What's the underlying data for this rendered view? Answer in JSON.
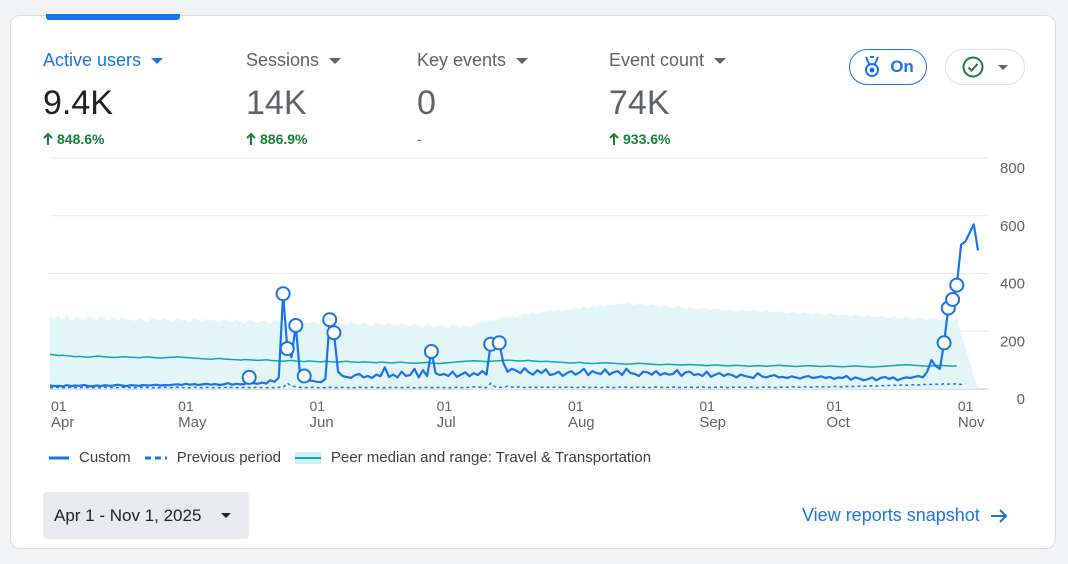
{
  "metrics": [
    {
      "label": "Active users",
      "value": "9.4K",
      "change": "848.6%",
      "trend": "up",
      "active": true
    },
    {
      "label": "Sessions",
      "value": "14K",
      "change": "886.9%",
      "trend": "up",
      "active": false
    },
    {
      "label": "Key events",
      "value": "0",
      "change": "-",
      "trend": "none",
      "active": false
    },
    {
      "label": "Event count",
      "value": "74K",
      "change": "933.6%",
      "trend": "up",
      "active": false
    }
  ],
  "toggle": {
    "label": "On",
    "icon": "award-ribbon-icon"
  },
  "status": {
    "icon": "check-circle-icon"
  },
  "legend": {
    "custom": "Custom",
    "previous": "Previous period",
    "peer": "Peer median and range: Travel & Transportation"
  },
  "date_range": "Apr 1 - Nov 1, 2025",
  "snapshot_link": "View reports snapshot",
  "colors": {
    "primary": "#1a73e8",
    "positive": "#188038",
    "peer_line": "#12a4af",
    "peer_band": "#e4f5f8"
  },
  "chart_data": {
    "type": "line",
    "ylim": [
      0,
      800
    ],
    "y_ticks": [
      "0",
      "200",
      "400",
      "600",
      "800"
    ],
    "x_ticks": [
      {
        "day": "01",
        "month": "Apr",
        "index": 0
      },
      {
        "day": "01",
        "month": "May",
        "index": 30
      },
      {
        "day": "01",
        "month": "Jun",
        "index": 61
      },
      {
        "day": "01",
        "month": "Jul",
        "index": 91
      },
      {
        "day": "01",
        "month": "Aug",
        "index": 122
      },
      {
        "day": "01",
        "month": "Sep",
        "index": 153
      },
      {
        "day": "01",
        "month": "Oct",
        "index": 183
      },
      {
        "day": "01",
        "month": "Nov",
        "index": 214
      }
    ],
    "series": [
      {
        "name": "Custom",
        "values": [
          12,
          10,
          11,
          9,
          13,
          10,
          12,
          11,
          14,
          10,
          9,
          12,
          10,
          13,
          11,
          12,
          15,
          12,
          10,
          13,
          12,
          11,
          14,
          12,
          13,
          15,
          12,
          14,
          13,
          15,
          16,
          14,
          18,
          15,
          17,
          14,
          16,
          18,
          15,
          17,
          14,
          16,
          20,
          15,
          18,
          16,
          17,
          40,
          20,
          18,
          22,
          19,
          30,
          25,
          40,
          330,
          140,
          110,
          220,
          50,
          45,
          30,
          28,
          25,
          24,
          35,
          240,
          195,
          60,
          45,
          42,
          38,
          48,
          52,
          40,
          45,
          38,
          50,
          44,
          75,
          42,
          50,
          40,
          60,
          45,
          48,
          70,
          40,
          65,
          45,
          130,
          55,
          48,
          52,
          45,
          60,
          42,
          50,
          58,
          44,
          55,
          48,
          62,
          50,
          155,
          150,
          160,
          90,
          60,
          70,
          64,
          55,
          72,
          58,
          50,
          65,
          55,
          68,
          48,
          52,
          60,
          45,
          55,
          62,
          50,
          58,
          70,
          48,
          62,
          55,
          52,
          68,
          50,
          58,
          62,
          48,
          70,
          55,
          52,
          45,
          60,
          58,
          50,
          62,
          48,
          55,
          50,
          52,
          65,
          45,
          58,
          60,
          48,
          52,
          45,
          60,
          42,
          50,
          55,
          45,
          52,
          48,
          40,
          50,
          45,
          42,
          38,
          55,
          44,
          40,
          45,
          48,
          40,
          42,
          38,
          44,
          40,
          36,
          42,
          45,
          38,
          40,
          44,
          38,
          42,
          35,
          40,
          38,
          45,
          32,
          40,
          36,
          30,
          34,
          40,
          30,
          38,
          42,
          35,
          40,
          30,
          36,
          40,
          38,
          42,
          45,
          40,
          60,
          100,
          80,
          70,
          160,
          280,
          310,
          360,
          500,
          510,
          540,
          570,
          480
        ]
      },
      {
        "name": "Previous period",
        "values": [
          5,
          5,
          6,
          5,
          4,
          6,
          5,
          5,
          6,
          5,
          4,
          5,
          5,
          6,
          5,
          4,
          5,
          6,
          5,
          5,
          4,
          5,
          6,
          5,
          5,
          4,
          5,
          6,
          5,
          5,
          6,
          5,
          5,
          4,
          6,
          5,
          5,
          6,
          5,
          4,
          5,
          5,
          6,
          5,
          5,
          4,
          6,
          5,
          5,
          6,
          5,
          4,
          5,
          5,
          6,
          5,
          20,
          10,
          8,
          6,
          5,
          5,
          6,
          5,
          4,
          5,
          6,
          5,
          5,
          6,
          5,
          5,
          4,
          6,
          5,
          5,
          6,
          5,
          5,
          4,
          5,
          6,
          5,
          5,
          6,
          5,
          4,
          5,
          5,
          6,
          5,
          5,
          6,
          5,
          5,
          4,
          6,
          5,
          5,
          6,
          8,
          7,
          6,
          5,
          20,
          8,
          6,
          5,
          10,
          7,
          6,
          8,
          5,
          6,
          7,
          5,
          6,
          7,
          5,
          6,
          6,
          5,
          7,
          6,
          5,
          6,
          7,
          5,
          6,
          6,
          5,
          7,
          6,
          5,
          6,
          7,
          6,
          5,
          6,
          7,
          6,
          6,
          5,
          7,
          6,
          5,
          6,
          7,
          6,
          5,
          6,
          7,
          5,
          6,
          7,
          6,
          5,
          6,
          7,
          6,
          5,
          6,
          7,
          6,
          5,
          7,
          6,
          5,
          6,
          7,
          6,
          5,
          6,
          7,
          6,
          8,
          7,
          6,
          8,
          7,
          6,
          8,
          7,
          8,
          7,
          9,
          8,
          7,
          9,
          8,
          9,
          10,
          9,
          10,
          11,
          10,
          12,
          11,
          12,
          13,
          12,
          14,
          13,
          14,
          15,
          14,
          16,
          15,
          16,
          17,
          16,
          18,
          17,
          18,
          17,
          16,
          18
        ]
      },
      {
        "name": "Peer median",
        "values": [
          120,
          118,
          116,
          117,
          115,
          114,
          112,
          113,
          111,
          110,
          112,
          114,
          113,
          111,
          110,
          109,
          110,
          112,
          111,
          110,
          109,
          108,
          110,
          111,
          110,
          108,
          107,
          108,
          109,
          110,
          111,
          110,
          109,
          108,
          107,
          106,
          105,
          104,
          103,
          105,
          106,
          104,
          103,
          102,
          101,
          100,
          102,
          101,
          100,
          99,
          100,
          101,
          99,
          98,
          97,
          96,
          98,
          99,
          97,
          96,
          95,
          97,
          96,
          95,
          94,
          96,
          95,
          94,
          93,
          95,
          96,
          94,
          93,
          92,
          94,
          93,
          92,
          91,
          93,
          92,
          91,
          90,
          92,
          93,
          91,
          90,
          89,
          90,
          91,
          92,
          90,
          89,
          88,
          90,
          91,
          92,
          94,
          95,
          96,
          97,
          98,
          97,
          96,
          95,
          96,
          97,
          98,
          99,
          100,
          99,
          98,
          97,
          98,
          99,
          97,
          96,
          95,
          96,
          95,
          94,
          93,
          92,
          91,
          90,
          91,
          92,
          90,
          89,
          88,
          89,
          90,
          91,
          90,
          89,
          88,
          87,
          86,
          87,
          88,
          89,
          88,
          87,
          86,
          85,
          84,
          85,
          86,
          85,
          84,
          83,
          84,
          85,
          84,
          83,
          82,
          81,
          82,
          83,
          82,
          81,
          80,
          81,
          82,
          81,
          80,
          79,
          80,
          81,
          80,
          79,
          80,
          81,
          82,
          81,
          80,
          79,
          78,
          79,
          80,
          81,
          80,
          79,
          78,
          79,
          80,
          79,
          78,
          77,
          78,
          79,
          80,
          79,
          78,
          77,
          76,
          77,
          78,
          79,
          80,
          81,
          82,
          83,
          84,
          83,
          82,
          81,
          80,
          79,
          80,
          81,
          82,
          81,
          80,
          79,
          80
        ]
      },
      {
        "name": "Peer range upper",
        "values": [
          250,
          245,
          255,
          240,
          260,
          235,
          250,
          245,
          238,
          252,
          246,
          240,
          255,
          242,
          238,
          248,
          236,
          250,
          244,
          240,
          236,
          246,
          240,
          232,
          248,
          240,
          236,
          244,
          238,
          230,
          246,
          236,
          240,
          232,
          248,
          238,
          230,
          244,
          236,
          240,
          228,
          244,
          236,
          230,
          240,
          234,
          226,
          242,
          236,
          228,
          238,
          232,
          226,
          240,
          232,
          228,
          236,
          230,
          224,
          238,
          230,
          226,
          234,
          228,
          222,
          236,
          228,
          224,
          232,
          226,
          220,
          234,
          226,
          222,
          230,
          224,
          218,
          232,
          224,
          220,
          228,
          222,
          216,
          230,
          222,
          218,
          226,
          220,
          214,
          228,
          220,
          216,
          224,
          218,
          212,
          226,
          218,
          214,
          222,
          216,
          220,
          228,
          236,
          232,
          240,
          236,
          244,
          250,
          246,
          254,
          248,
          256,
          262,
          258,
          266,
          260,
          268,
          264,
          272,
          268,
          276,
          270,
          278,
          274,
          282,
          278,
          286,
          280,
          288,
          284,
          292,
          286,
          294,
          290,
          298,
          292,
          300,
          296,
          290,
          298,
          292,
          288,
          294,
          288,
          284,
          290,
          286,
          280,
          288,
          282,
          278,
          284,
          280,
          276,
          282,
          278,
          274,
          280,
          276,
          272,
          278,
          274,
          270,
          276,
          272,
          268,
          274,
          270,
          266,
          272,
          268,
          264,
          270,
          266,
          262,
          268,
          264,
          260,
          266,
          262,
          258,
          264,
          260,
          256,
          262,
          258,
          254,
          260,
          256,
          252,
          258,
          254,
          250,
          256,
          252,
          248,
          254,
          250,
          246,
          252,
          248,
          244,
          250,
          246,
          242,
          248,
          244,
          240,
          246,
          242,
          238,
          244,
          240,
          236,
          242
        ]
      }
    ]
  }
}
